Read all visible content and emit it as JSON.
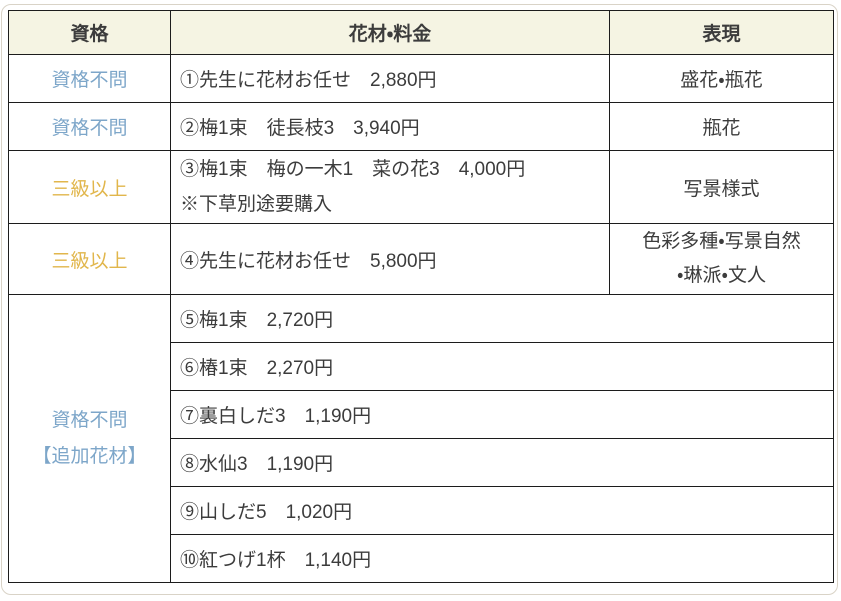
{
  "colors": {
    "header_bg": "#f5f4e3",
    "border": "#1c1c1c",
    "text": "#3c3c3c",
    "qual_blue": "#7da6c9",
    "qual_gold": "#e1b64b",
    "frame": "#d9d3c7"
  },
  "table": {
    "headers": [
      "資格",
      "花材・料金",
      "表現"
    ],
    "rows": [
      {
        "qualification": "資格不問",
        "materials": "①先生に花材お任せ　2,880円",
        "expression": "盛花・瓶花"
      },
      {
        "qualification": "資格不問",
        "materials": "②梅1束　徒長枝3　3,940円",
        "expression": "瓶花"
      },
      {
        "qualification": "三級以上",
        "materials_line1": "③梅1束　梅の一木1　菜の花3　4,000円",
        "materials_line2": "※下草別途要購入",
        "expression": "写景様式"
      },
      {
        "qualification": "三級以上",
        "materials": "④先生に花材お任せ　5,800円",
        "expression_line1": "色彩多種・写景自然",
        "expression_line2": "・琳派・文人"
      }
    ],
    "addon_group": {
      "qualification_line1": "資格不問",
      "qualification_line2": "【追加花材】",
      "items": [
        "⑤梅1束　2,720円",
        "⑥椿1束　2,270円",
        "⑦裏白しだ3　1,190円",
        "⑧水仙3　1,190円",
        "⑨山しだ5　1,020円",
        "⑩紅つげ1杯　1,140円"
      ]
    }
  }
}
